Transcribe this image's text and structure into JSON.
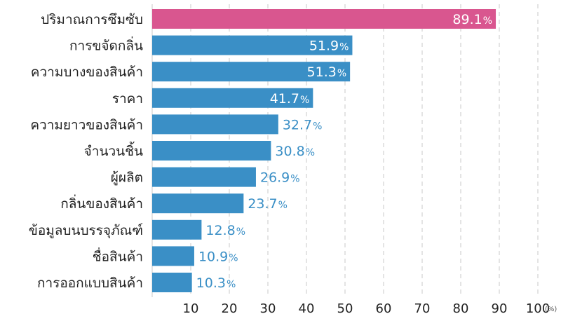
{
  "chart_data": {
    "type": "bar",
    "orientation": "horizontal",
    "categories": [
      "ปริมาณการซึมซับ",
      "การขจัดกลิ่น",
      "ความบางของสินค้า",
      "ราคา",
      "ความยาวของสินค้า",
      "จำนวนชิ้น",
      "ผู้ผลิต",
      "กลิ่นของสินค้า",
      "ข้อมูลบนบรรจุภัณฑ์",
      "ชื่อสินค้า",
      "การออกแบบสินค้า"
    ],
    "values": [
      89.1,
      51.9,
      51.3,
      41.7,
      32.7,
      30.8,
      26.9,
      23.7,
      12.8,
      10.9,
      10.3
    ],
    "value_labels": [
      "89.1",
      "51.9",
      "51.3",
      "41.7",
      "32.7",
      "30.8",
      "26.9",
      "23.7",
      "12.8",
      "10.9",
      "10.3"
    ],
    "value_suffix": "%",
    "x_ticks": [
      "10",
      "20",
      "30",
      "40",
      "50",
      "60",
      "70",
      "80",
      "90",
      "100"
    ],
    "x_unit": "(%)",
    "xlim": [
      0,
      100
    ],
    "grid": "vertical-dashed",
    "colors": {
      "highlight": "#d9568f",
      "bar": "#3a8fc6",
      "label_inside": "#ffffff",
      "label_outside": "#3a8fc6",
      "grid": "#c8c8c8"
    }
  }
}
